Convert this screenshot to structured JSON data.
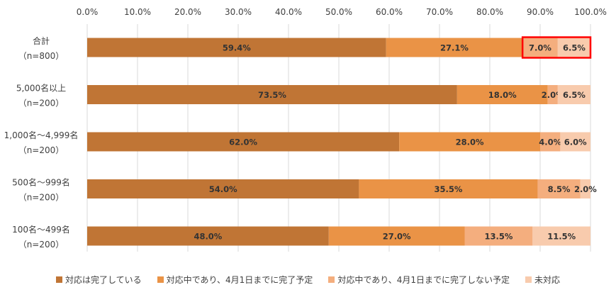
{
  "chart_data": {
    "type": "bar",
    "orientation": "horizontal",
    "stacked": true,
    "title": "",
    "xlabel": "",
    "ylabel": "",
    "xlim": [
      0,
      100
    ],
    "x_ticks": [
      "0.0%",
      "10.0%",
      "20.0%",
      "30.0%",
      "40.0%",
      "50.0%",
      "60.0%",
      "70.0%",
      "80.0%",
      "90.0%",
      "100.0%"
    ],
    "x_tick_values": [
      0,
      10,
      20,
      30,
      40,
      50,
      60,
      70,
      80,
      90,
      100
    ],
    "grid": true,
    "legend_position": "bottom",
    "categories": [
      {
        "line1": "合計",
        "line2": "（n=800）"
      },
      {
        "line1": "5,000名以上",
        "line2": "（n=200）"
      },
      {
        "line1": "1,000名～4,999名",
        "line2": "（n=200）"
      },
      {
        "line1": "500名～999名",
        "line2": "（n=200）"
      },
      {
        "line1": "100名～499名",
        "line2": "（n=200）"
      }
    ],
    "series": [
      {
        "name": "対応は完了している",
        "color": "#c07535",
        "values": [
          59.4,
          73.5,
          62.0,
          54.0,
          48.0
        ],
        "labels": [
          "59.4%",
          "73.5%",
          "62.0%",
          "54.0%",
          "48.0%"
        ]
      },
      {
        "name": "対応中であり、4月1日までに完了予定",
        "color": "#ea9346",
        "values": [
          27.1,
          18.0,
          28.0,
          35.5,
          27.0
        ],
        "labels": [
          "27.1%",
          "18.0%",
          "28.0%",
          "35.5%",
          "27.0%"
        ]
      },
      {
        "name": "対応中であり、4月1日までに完了しない予定",
        "color": "#f4ae7e",
        "values": [
          7.0,
          2.0,
          4.0,
          8.5,
          13.5
        ],
        "labels": [
          "7.0%",
          "2.0%",
          "4.0%",
          "8.5%",
          "13.5%"
        ]
      },
      {
        "name": "未対応",
        "color": "#f8cbad",
        "values": [
          6.5,
          6.5,
          6.0,
          2.0,
          11.5
        ],
        "labels": [
          "6.5%",
          "6.5%",
          "6.0%",
          "2.0%",
          "11.5%"
        ]
      }
    ],
    "highlight": {
      "category_index": 0,
      "series_indices": [
        2,
        3
      ],
      "color": "#ff0000"
    }
  }
}
